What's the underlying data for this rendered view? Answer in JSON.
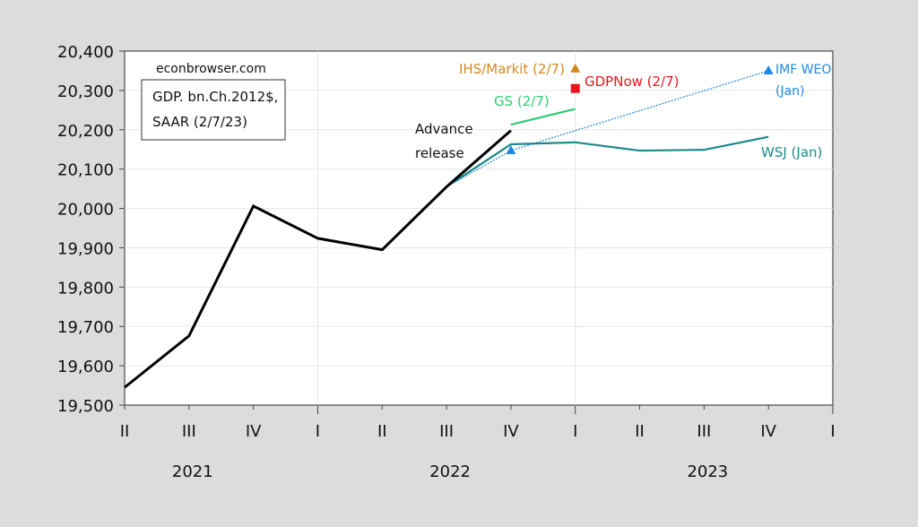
{
  "chart_data": {
    "type": "line",
    "title": "",
    "watermark": "econbrowser.com",
    "legend_box": [
      "GDP. bn.Ch.2012$,",
      "SAAR (2/7/23)"
    ],
    "xlabel": "",
    "ylabel": "",
    "ylim": [
      19500,
      20400
    ],
    "yticks": [
      19500,
      19600,
      19700,
      19800,
      19900,
      20000,
      20100,
      20200,
      20300,
      20400
    ],
    "ytick_labels": [
      "19,500",
      "19,600",
      "19,700",
      "19,800",
      "19,900",
      "20,000",
      "20,100",
      "20,200",
      "20,300",
      "20,400"
    ],
    "x": [
      "2021Q2",
      "2021Q3",
      "2021Q4",
      "2022Q1",
      "2022Q2",
      "2022Q3",
      "2022Q4",
      "2023Q1",
      "2023Q2",
      "2023Q3",
      "2023Q4",
      "2024Q1"
    ],
    "xtick_labels": [
      "II",
      "III",
      "IV",
      "I",
      "II",
      "III",
      "IV",
      "I",
      "II",
      "III",
      "IV",
      "I"
    ],
    "year_labels": [
      {
        "label": "2021",
        "center_index": 1
      },
      {
        "label": "2022",
        "center_index": 5
      },
      {
        "label": "2023",
        "center_index": 9
      }
    ],
    "grid": true,
    "series": [
      {
        "name": "GDP (Advance release)",
        "color": "#000000",
        "style": "solid",
        "points": [
          [
            "2021Q2",
            19545
          ],
          [
            "2021Q3",
            19676
          ],
          [
            "2021Q4",
            20006
          ],
          [
            "2022Q1",
            19924
          ],
          [
            "2022Q2",
            19895
          ],
          [
            "2022Q3",
            20055
          ],
          [
            "2022Q4",
            20198
          ]
        ]
      },
      {
        "name": "GS (2/7)",
        "color": "#2ecc71",
        "style": "solid",
        "points": [
          [
            "2022Q4",
            20213
          ],
          [
            "2023Q1",
            20253
          ]
        ]
      },
      {
        "name": "WSJ (Jan)",
        "color": "#1a8a8a",
        "style": "solid",
        "points": [
          [
            "2022Q3",
            20055
          ],
          [
            "2022Q4",
            20163
          ],
          [
            "2023Q1",
            20168
          ],
          [
            "2023Q2",
            20147
          ],
          [
            "2023Q3",
            20149
          ],
          [
            "2023Q4",
            20182
          ]
        ]
      },
      {
        "name": "IMF WEO (Jan)",
        "color": "#1e88e5",
        "style": "dotted",
        "points": [
          [
            "2022Q3",
            20055
          ],
          [
            "2022Q4",
            20147
          ],
          [
            "2023Q4",
            20350
          ]
        ],
        "markers": [
          [
            "2022Q4",
            20147
          ],
          [
            "2023Q4",
            20350
          ]
        ],
        "marker": "triangle"
      },
      {
        "name": "IHS/Markit (2/7)",
        "color": "#d4881f",
        "style": "marker",
        "marker": "triangle",
        "points": [
          [
            "2023Q1",
            20355
          ]
        ]
      },
      {
        "name": "GDPNow (2/7)",
        "color": "#e8141c",
        "style": "marker",
        "marker": "square",
        "points": [
          [
            "2023Q1",
            20305
          ]
        ]
      }
    ],
    "annotations": [
      {
        "text": "Advance",
        "color": "#111111"
      },
      {
        "text": "release",
        "color": "#111111"
      },
      {
        "text": "IHS/Markit (2/7)",
        "color": "#d4881f"
      },
      {
        "text": "GDPNow (2/7)",
        "color": "#e8141c"
      },
      {
        "text": "GS (2/7)",
        "color": "#2ecc71"
      },
      {
        "text": "IMF WEO",
        "color": "#1e88e5"
      },
      {
        "text": "(Jan)",
        "color": "#1e88e5"
      },
      {
        "text": "WSJ (Jan)",
        "color": "#1a8a8a"
      }
    ]
  }
}
